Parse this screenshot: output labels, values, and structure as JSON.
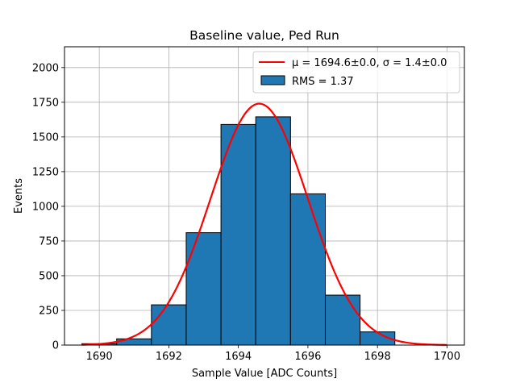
{
  "chart_data": {
    "type": "bar",
    "title": "Baseline value, Ped Run",
    "xlabel": "Sample Value [ADC Counts]",
    "ylabel": "Events",
    "xlim": [
      1689,
      1700.5
    ],
    "ylim": [
      0,
      2150
    ],
    "xticks": [
      "1690",
      "1692",
      "1694",
      "1696",
      "1698",
      "1700"
    ],
    "yticks": [
      "0",
      "250",
      "500",
      "750",
      "1000",
      "1250",
      "1500",
      "1750",
      "2000"
    ],
    "grid": true,
    "legend_position": "top-right",
    "histogram": {
      "name": "RMS = 1.37",
      "color": "#1f77b4",
      "bins": [
        {
          "x0": 1689.5,
          "x1": 1690.5,
          "value": 10
        },
        {
          "x0": 1690.5,
          "x1": 1691.5,
          "value": 45
        },
        {
          "x0": 1691.5,
          "x1": 1692.5,
          "value": 290
        },
        {
          "x0": 1692.5,
          "x1": 1693.5,
          "value": 810
        },
        {
          "x0": 1693.5,
          "x1": 1694.5,
          "value": 1590
        },
        {
          "x0": 1694.5,
          "x1": 1695.5,
          "value": 1645
        },
        {
          "x0": 1695.5,
          "x1": 1696.5,
          "value": 1090
        },
        {
          "x0": 1696.5,
          "x1": 1697.5,
          "value": 360
        },
        {
          "x0": 1697.5,
          "x1": 1698.5,
          "value": 95
        }
      ]
    },
    "fit": {
      "name_mu": "μ = 1694.6±0.0",
      "name_sigma": "σ = 1.4±0.0",
      "color": "#ff0000",
      "amplitude": 1740,
      "mu": 1694.6,
      "sigma": 1.4,
      "x_range": [
        1689.5,
        1700
      ]
    }
  }
}
